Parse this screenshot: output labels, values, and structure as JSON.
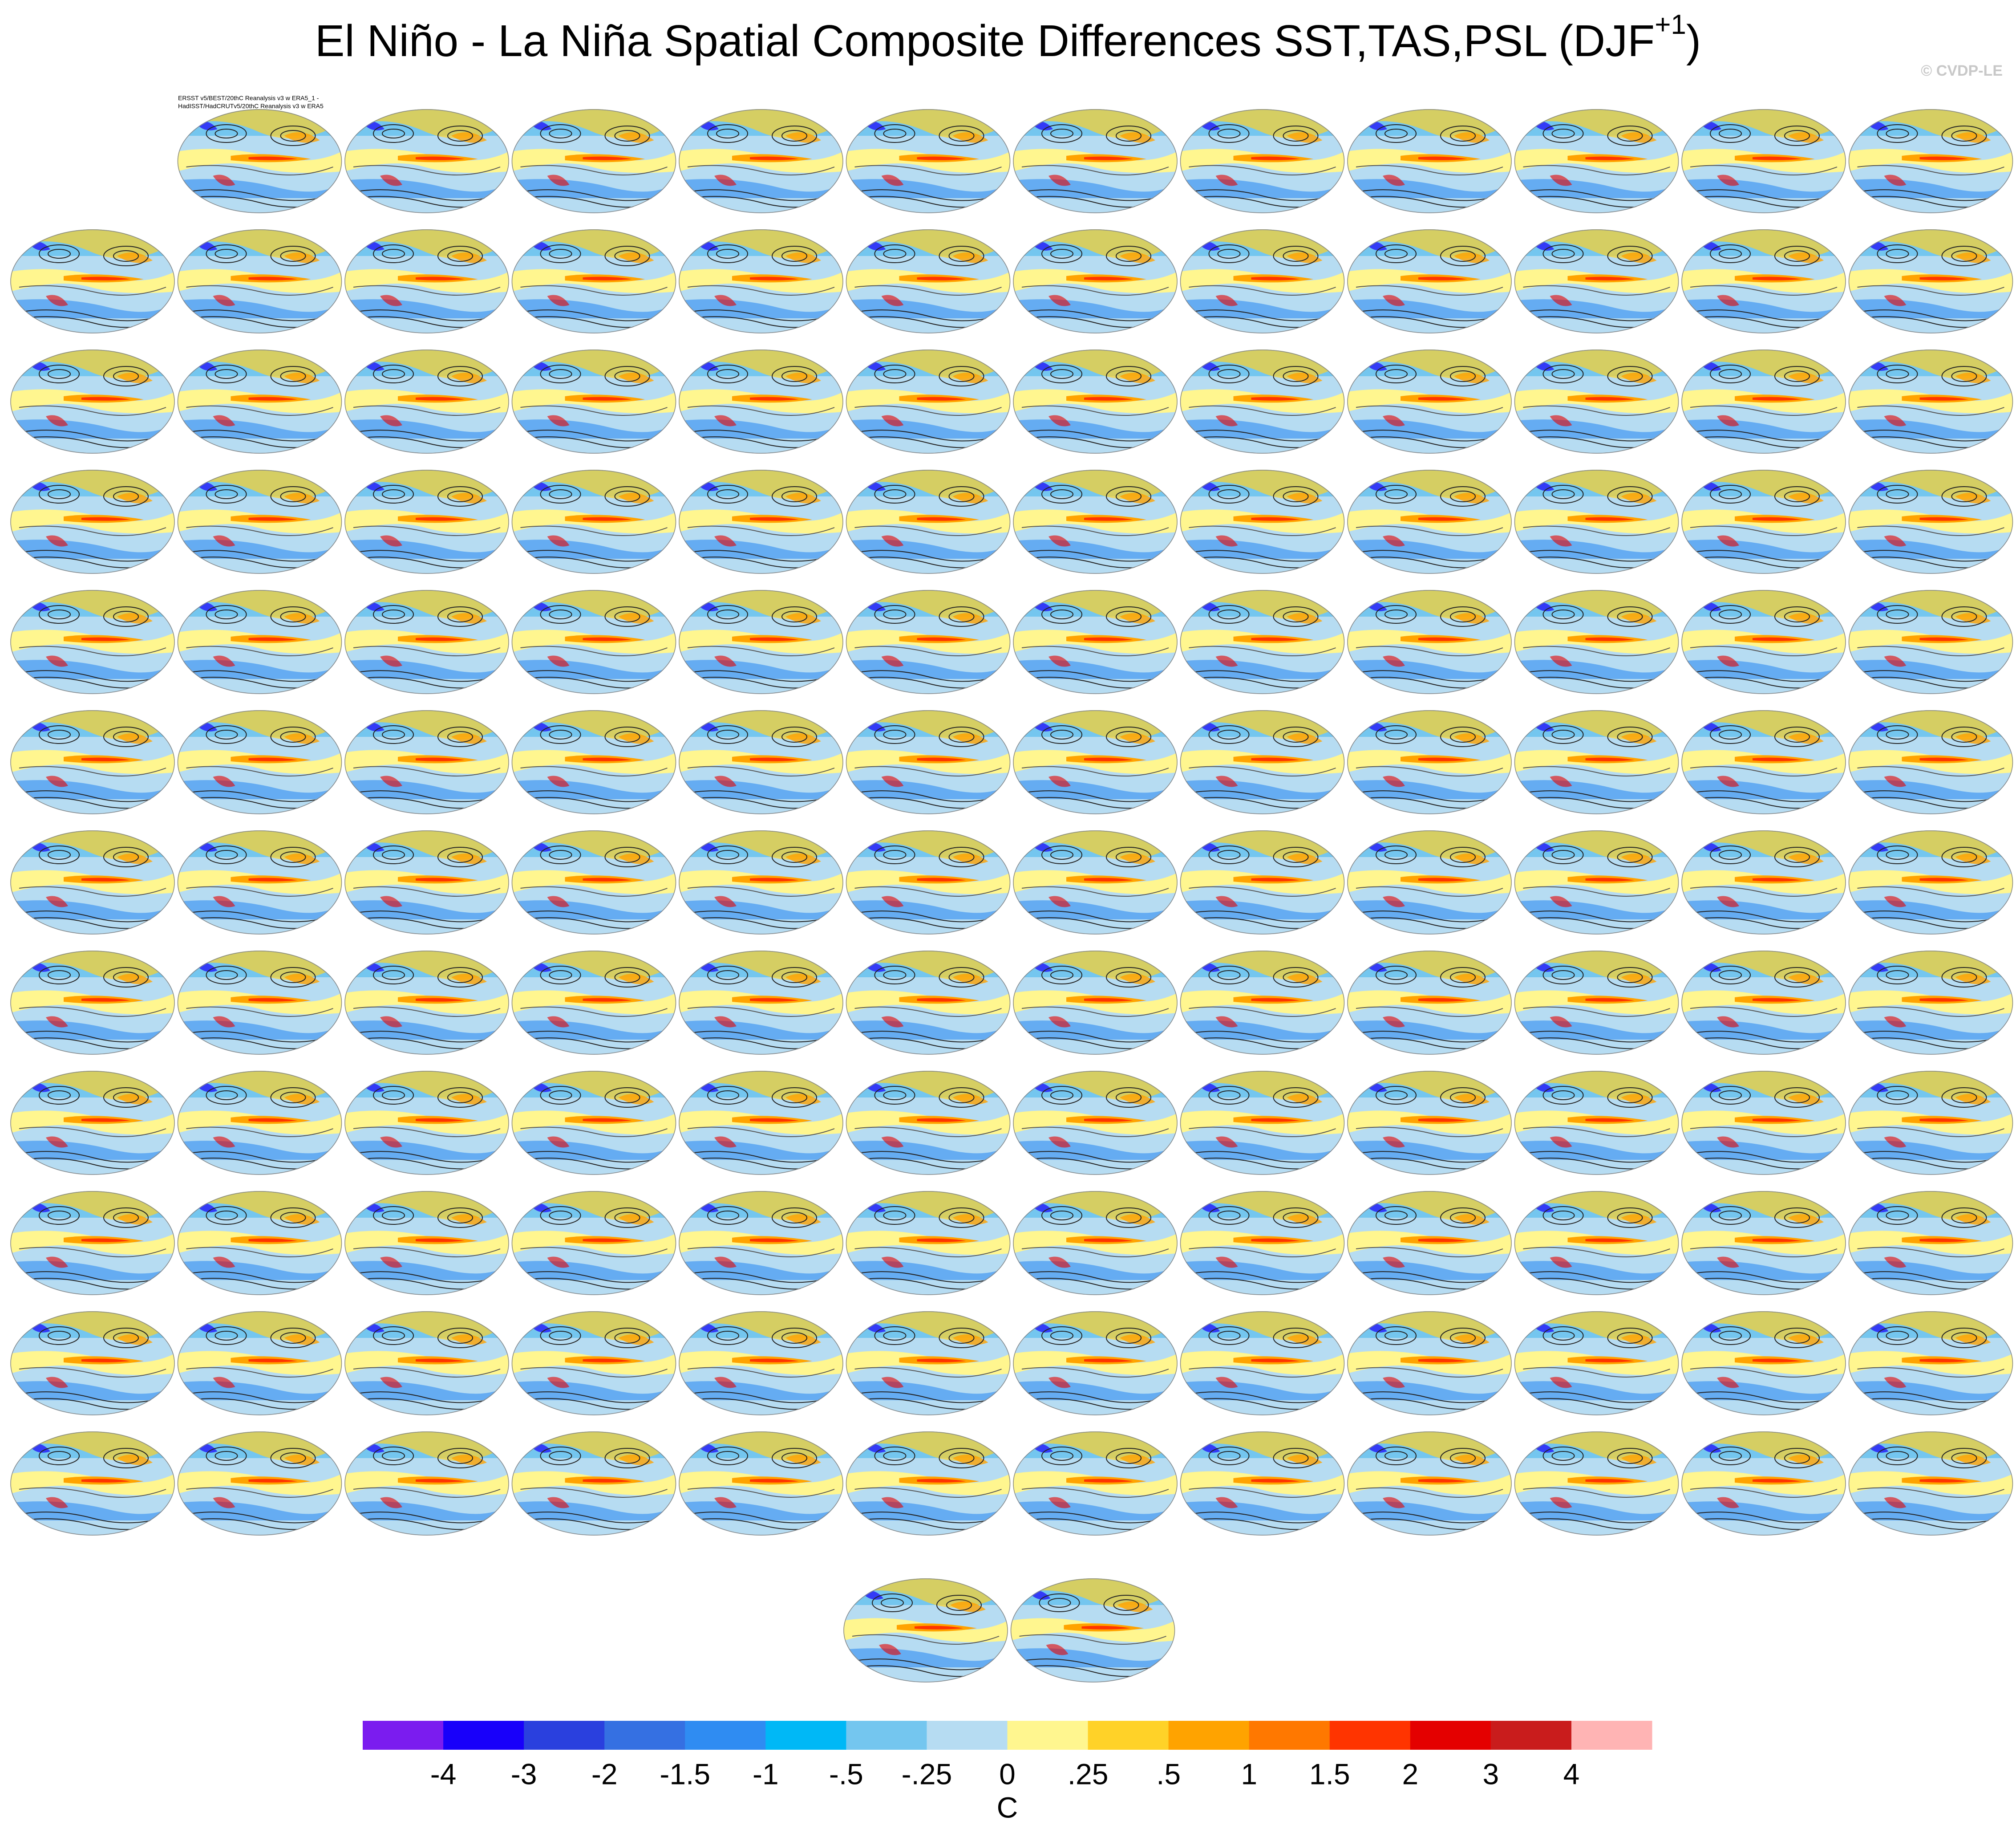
{
  "header": {
    "title": "El Niño - La Niña Spatial Composite Differences SST,TAS,PSL (DJF",
    "title_superscript": "+1",
    "title_end": ")",
    "credit": "© CVDP-LE"
  },
  "first_panel": {
    "label_line1": "ERSST v5/BEST/20thC Reanalysis v3 w ERA5_1 -",
    "label_line2": "HadISST/HadCRUTv5/20thC Reanalysis v3 w ERA5"
  },
  "colorbar": {
    "colors": [
      "#7b1cef",
      "#1800fa",
      "#2a40de",
      "#3570e2",
      "#2f8cf2",
      "#00b8f6",
      "#74c6ef",
      "#b6dcf2",
      "#fff68f",
      "#ffd228",
      "#ffa300",
      "#ff7800",
      "#ff3400",
      "#e40000",
      "#c91c1c",
      "#ffb4b4"
    ],
    "labels": [
      "-4",
      "-3",
      "-2",
      "-1.5",
      "-1",
      "-.5",
      "-.25",
      "0",
      ".25",
      ".5",
      "1",
      "1.5",
      "2",
      "3",
      "4"
    ],
    "units": "C"
  }
}
